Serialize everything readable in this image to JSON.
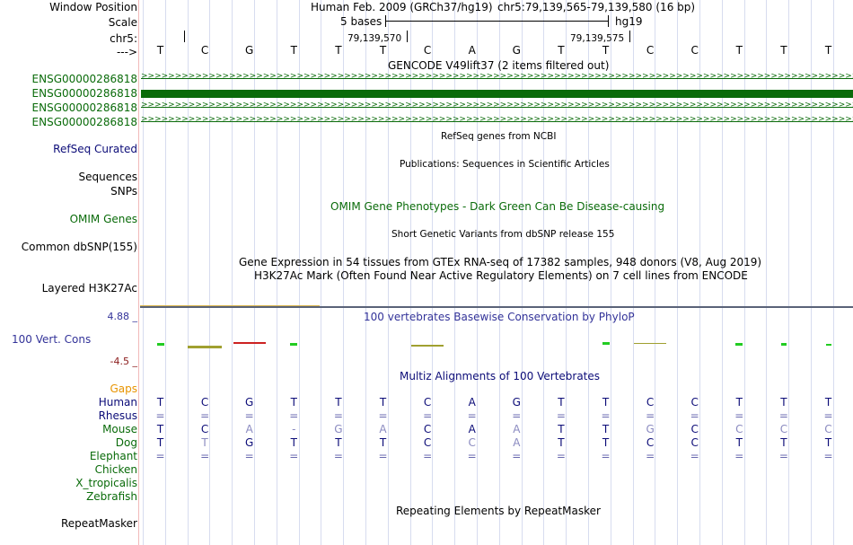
{
  "header": {
    "window_position_label": "Window Position",
    "scale_label": "Scale",
    "chrom_label": "chr5:",
    "strand_label": "--->",
    "assembly_title": "Human Feb. 2009 (GRCh37/hg19)",
    "position": "chr5:79,139,565-79,139,580 (16 bp)",
    "scale_text": "5 bases",
    "db_name": "hg19",
    "coord1": "79,139,570",
    "coord2": "79,139,575"
  },
  "bases": [
    "T",
    "C",
    "G",
    "T",
    "T",
    "T",
    "C",
    "A",
    "G",
    "T",
    "T",
    "C",
    "C",
    "T",
    "T",
    "T"
  ],
  "gencode": {
    "title": "GENCODE V49lift37 (2 items filtered out)",
    "items": [
      "ENSG00000286818",
      "ENSG00000286818",
      "ENSG00000286818",
      "ENSG00000286818"
    ],
    "chevrons": ">>>>>>>>>>>>>>>>>>>>>>>>>>>>>>>>>>>>>>>>>>>>>>>>>>>>>>>>>>>>>>>>>>>>>>>>>>>>>>>>>>>>>>>>>>>>>>>>>>>>>>>>>>>>>"
  },
  "tracks": {
    "refseq": {
      "label": "RefSeq Curated",
      "title": "RefSeq genes from NCBI"
    },
    "publications": {
      "label": "Sequences",
      "title": "Publications: Sequences in Scientific Articles"
    },
    "snps": {
      "label": "SNPs"
    },
    "omim": {
      "label": "OMIM Genes",
      "title": "OMIM Gene Phenotypes - Dark Green Can Be Disease-causing"
    },
    "dbsnp": {
      "label": "Common dbSNP(155)",
      "title": "Short Genetic Variants from dbSNP release 155"
    },
    "gtex": {
      "title": "Gene Expression in 54 tissues from GTEx RNA-seq of 17382 samples, 948 donors (V8, Aug 2019)"
    },
    "h3k27ac": {
      "label": "Layered H3K27Ac",
      "title": "H3K27Ac Mark (Often Found Near Active Regulatory Elements) on 7 cell lines from ENCODE"
    },
    "cons": {
      "label": "100 Vert. Cons",
      "max": "4.88 _",
      "min": "-4.5 _",
      "title": "100 vertebrates Basewise Conservation by PhyloP"
    },
    "multiz": {
      "title": "Multiz Alignments of 100 Vertebrates",
      "gaps_label": "Gaps",
      "species": [
        {
          "name": "Human",
          "seq": [
            "T",
            "C",
            "G",
            "T",
            "T",
            "T",
            "C",
            "A",
            "G",
            "T",
            "T",
            "C",
            "C",
            "T",
            "T",
            "T"
          ]
        },
        {
          "name": "Rhesus",
          "seq": [
            "=",
            "=",
            "=",
            "=",
            "=",
            "=",
            "=",
            "=",
            "=",
            "=",
            "=",
            "=",
            "=",
            "=",
            "=",
            "="
          ]
        },
        {
          "name": "Mouse",
          "seq": [
            "T",
            "C",
            "A",
            "-",
            "G",
            "A",
            "C",
            "A",
            "A",
            "T",
            "T",
            "G",
            "C",
            "C",
            "C",
            "C"
          ]
        },
        {
          "name": "Dog",
          "seq": [
            "T",
            "T",
            "G",
            "T",
            "T",
            "T",
            "C",
            "C",
            "A",
            "T",
            "T",
            "C",
            "C",
            "T",
            "T",
            "T"
          ]
        },
        {
          "name": "Elephant",
          "seq": [
            "=",
            "=",
            "=",
            "=",
            "=",
            "=",
            "=",
            "=",
            "=",
            "=",
            "=",
            "=",
            "=",
            "=",
            "=",
            "="
          ]
        },
        {
          "name": "Chicken",
          "seq": []
        },
        {
          "name": "X_tropicalis",
          "seq": []
        },
        {
          "name": "Zebrafish",
          "seq": []
        }
      ]
    },
    "repeatmasker": {
      "label": "RepeatMasker",
      "title": "Repeating Elements by RepeatMasker"
    }
  },
  "colors": {
    "gencode": "#0a6b0a",
    "refseq": "#0c0c78",
    "omim": "#0a6b0a",
    "cons": "#333399",
    "gaps": "#e89400",
    "species": "#0a6b0a"
  }
}
